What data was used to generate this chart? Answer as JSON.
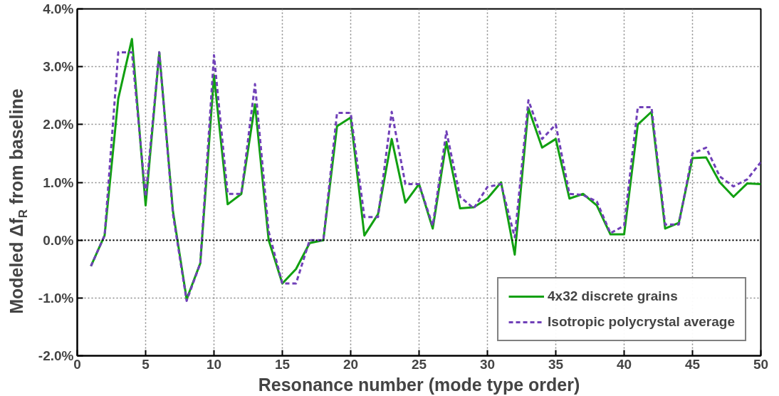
{
  "chart_data": {
    "type": "line",
    "xlabel": "Resonance number (mode type order)",
    "ylabel": "Modeled Δf$_{R}$ from baseline",
    "x": [
      1,
      2,
      3,
      4,
      5,
      6,
      7,
      8,
      9,
      10,
      11,
      12,
      13,
      14,
      15,
      16,
      17,
      18,
      19,
      20,
      21,
      22,
      23,
      24,
      25,
      26,
      27,
      28,
      29,
      30,
      31,
      32,
      33,
      34,
      35,
      36,
      37,
      38,
      39,
      40,
      41,
      42,
      43,
      44,
      45,
      46,
      47,
      48,
      49,
      50
    ],
    "series": [
      {
        "name": "4x32 discrete grains",
        "color": "#11a011",
        "line_style": "solid",
        "values": [
          -0.45,
          0.08,
          2.45,
          3.48,
          0.6,
          3.25,
          0.5,
          -1.02,
          -0.4,
          2.85,
          0.62,
          0.8,
          2.35,
          0.0,
          -0.75,
          -0.5,
          -0.05,
          0.0,
          1.97,
          2.12,
          0.08,
          0.45,
          1.75,
          0.65,
          0.97,
          0.2,
          1.7,
          0.55,
          0.57,
          0.72,
          1.0,
          -0.25,
          2.28,
          1.6,
          1.75,
          0.72,
          0.8,
          0.6,
          0.1,
          0.1,
          2.0,
          2.22,
          0.2,
          0.3,
          1.42,
          1.43,
          1.0,
          0.75,
          0.98,
          0.97
        ]
      },
      {
        "name": "Isotropic polycrystal average",
        "color": "#7040b8",
        "line_style": "dashed",
        "values": [
          -0.45,
          0.08,
          3.25,
          3.25,
          0.75,
          3.25,
          0.45,
          -1.05,
          -0.4,
          3.2,
          0.8,
          0.8,
          2.7,
          0.15,
          -0.75,
          -0.75,
          0.0,
          0.0,
          2.2,
          2.2,
          0.4,
          0.4,
          2.22,
          0.97,
          0.97,
          0.25,
          1.88,
          0.75,
          0.55,
          0.92,
          0.97,
          0.05,
          2.42,
          1.75,
          2.0,
          0.8,
          0.78,
          0.67,
          0.12,
          0.25,
          2.3,
          2.3,
          0.27,
          0.27,
          1.5,
          1.6,
          1.1,
          0.93,
          1.05,
          1.35
        ]
      }
    ],
    "xlim": [
      0,
      50
    ],
    "xticks": [
      0,
      5,
      10,
      15,
      20,
      25,
      30,
      35,
      40,
      45,
      50
    ],
    "ylim": [
      -2,
      4
    ],
    "yticks": [
      {
        "value": -2,
        "label": "-2.0%"
      },
      {
        "value": -1,
        "label": "-1.0%"
      },
      {
        "value": 0,
        "label": "0.0%"
      },
      {
        "value": 1,
        "label": "1.0%"
      },
      {
        "value": 2,
        "label": "2.0%"
      },
      {
        "value": 3,
        "label": "3.0%"
      },
      {
        "value": 4,
        "label": "4.0%"
      }
    ],
    "ref_lines": [
      {
        "axis": "y",
        "value": 0,
        "color": "#000000",
        "line_style": "dotted"
      }
    ],
    "grid": true,
    "legend": "bottom right",
    "marker": "none"
  }
}
